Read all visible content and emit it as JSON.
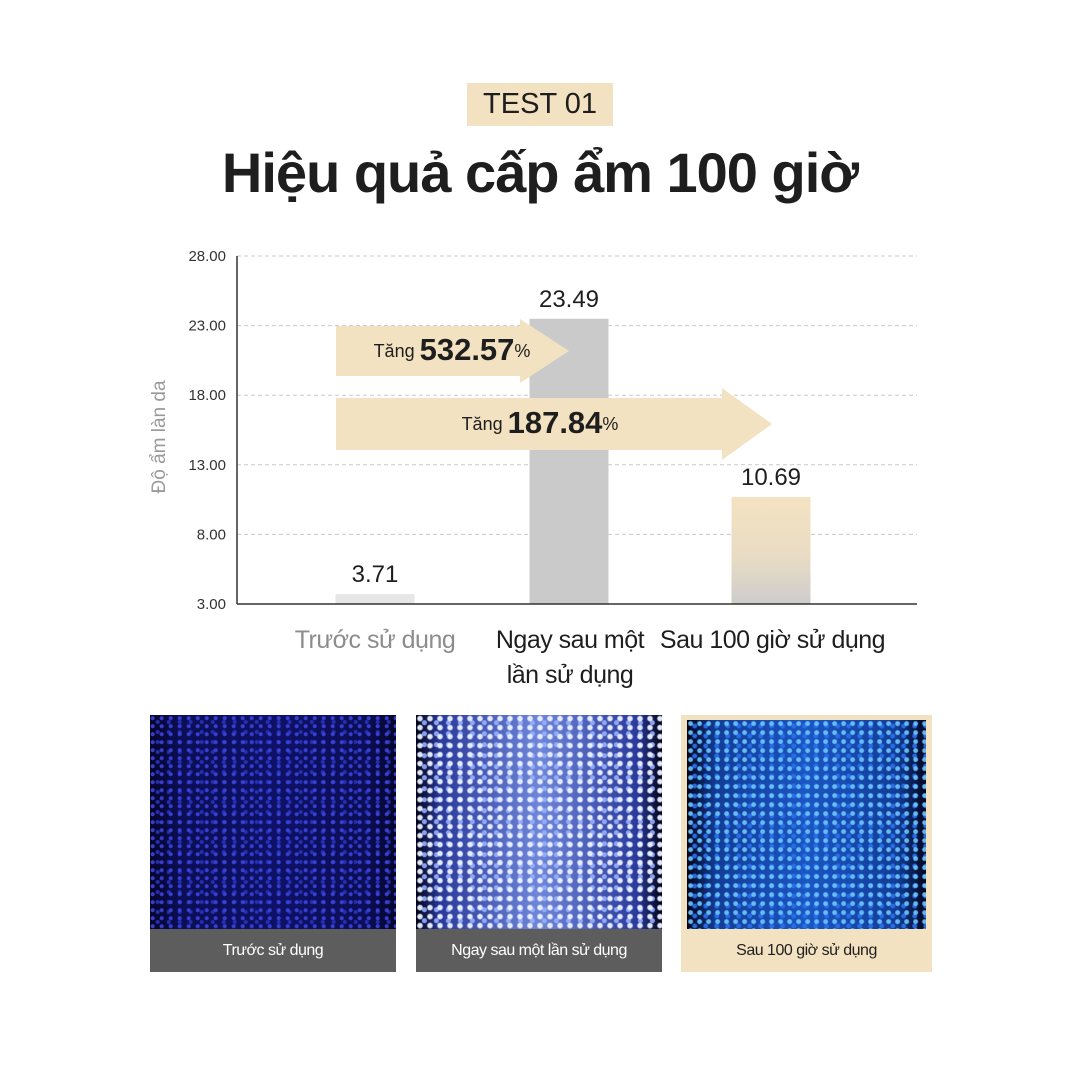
{
  "badge": "TEST 01",
  "title": "Hiệu quả cấp ẩm 100 giờ",
  "chart_data": {
    "type": "bar",
    "ylabel": "Độ ẩm làn da",
    "ylim": [
      3,
      28
    ],
    "yticks": [
      "3.00",
      "8.00",
      "13.00",
      "18.00",
      "23.00",
      "28.00"
    ],
    "grid": true,
    "categories": [
      "Trước sử dụng",
      "Ngay sau một lần sử dụng",
      "Sau 100 giờ sử dụng"
    ],
    "category_lines": [
      [
        "Trước sử dụng"
      ],
      [
        "Ngay sau một",
        "lần sử dụng"
      ],
      [
        "Sau 100 giờ sử dụng"
      ]
    ],
    "values": [
      3.71,
      23.49,
      10.69
    ],
    "value_labels": [
      "3.71",
      "23.49",
      "10.69"
    ],
    "bar_colors": [
      "#e6e6e6",
      "#cacaca",
      "#f1dfbd"
    ],
    "annotations": [
      {
        "prefix": "Tăng",
        "value": "532.57",
        "suffix": "%"
      },
      {
        "prefix": "Tăng",
        "value": "187.84",
        "suffix": "%"
      }
    ],
    "arrow_color": "#f3e2c1"
  },
  "photos": [
    {
      "caption": "Trước sử dụng"
    },
    {
      "caption": "Ngay sau một lần sử dụng"
    },
    {
      "caption": "Sau 100 giờ sử dụng"
    }
  ]
}
